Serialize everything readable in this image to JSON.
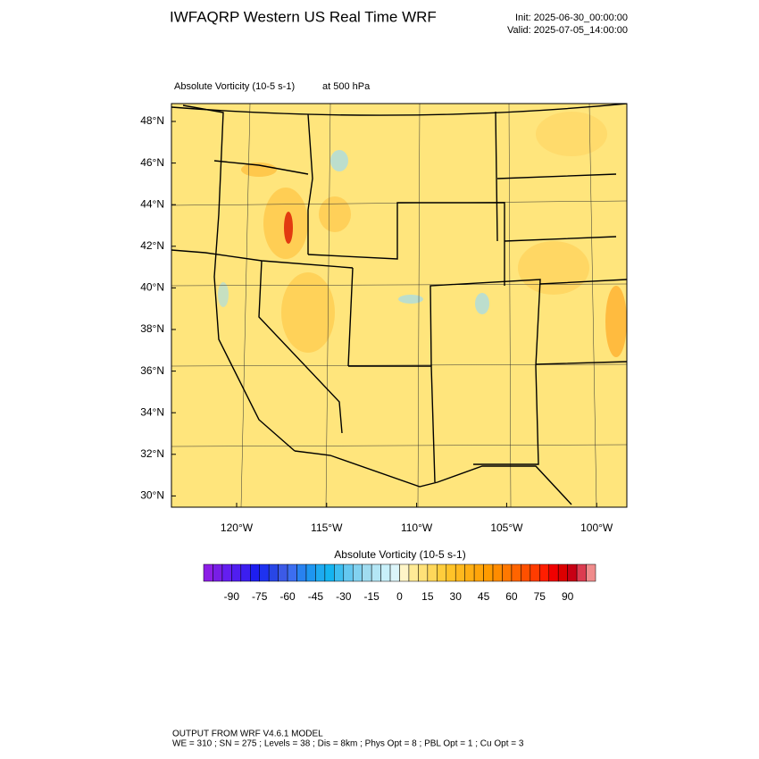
{
  "header": {
    "title": "IWFAQRP Western US Real Time WRF",
    "init": "Init: 2025-06-30_00:00:00",
    "valid": "Valid: 2025-07-05_14:00:00"
  },
  "plot": {
    "field_label": "Absolute Vorticity   (10-5 s-1)",
    "level_label": "at   500 hPa"
  },
  "map": {
    "lat_labels": [
      "48°N",
      "46°N",
      "44°N",
      "42°N",
      "40°N",
      "38°N",
      "36°N",
      "34°N",
      "32°N",
      "30°N"
    ],
    "lon_labels": [
      "120°W",
      "115°W",
      "110°W",
      "105°W",
      "100°W"
    ]
  },
  "colorbar": {
    "title": "Absolute Vorticity  (10-5 s-1)",
    "ticks": [
      -90,
      -75,
      -60,
      -45,
      -30,
      -15,
      0,
      15,
      30,
      45,
      60,
      75,
      90
    ],
    "colors": [
      "#8c1ee6",
      "#781ee6",
      "#641ef0",
      "#501ef0",
      "#3c1ef0",
      "#1e1ef0",
      "#1e32f0",
      "#2846e6",
      "#3c5ae6",
      "#3c6ef0",
      "#2882f0",
      "#1e96f0",
      "#1eaaf0",
      "#14b4f0",
      "#3cbef0",
      "#64c8f0",
      "#82d2f0",
      "#a0dcf0",
      "#b4e6f5",
      "#c8f0fa",
      "#dcf5fa",
      "#fff5c8",
      "#ffeb96",
      "#ffe178",
      "#ffd75a",
      "#ffcd3c",
      "#ffc328",
      "#ffb91e",
      "#ffaf14",
      "#ffa50a",
      "#ff9b00",
      "#ff8c00",
      "#ff7800",
      "#ff6400",
      "#ff5000",
      "#ff3c00",
      "#ff1e00",
      "#f00000",
      "#dc0000",
      "#c80014",
      "#dc3c50",
      "#f08c8c"
    ]
  },
  "footer": {
    "line1": "OUTPUT FROM WRF V4.6.1 MODEL",
    "line2": "WE = 310 ; SN = 275 ; Levels = 38 ; Dis = 8km ; Phys Opt = 8 ; PBL Opt = 1 ; Cu Opt = 3"
  }
}
